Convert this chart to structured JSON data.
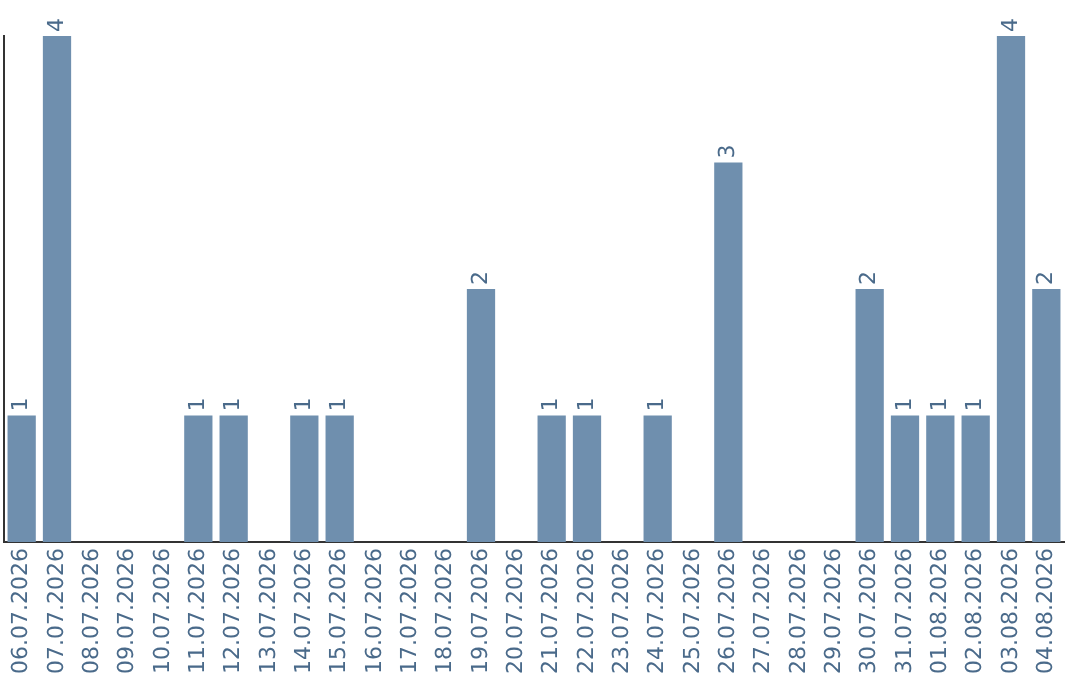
{
  "chart_data": {
    "type": "bar",
    "categories": [
      "06.07.2026",
      "07.07.2026",
      "08.07.2026",
      "09.07.2026",
      "10.07.2026",
      "11.07.2026",
      "12.07.2026",
      "13.07.2026",
      "14.07.2026",
      "15.07.2026",
      "16.07.2026",
      "17.07.2026",
      "18.07.2026",
      "19.07.2026",
      "20.07.2026",
      "21.07.2026",
      "22.07.2026",
      "23.07.2026",
      "24.07.2026",
      "25.07.2026",
      "26.07.2026",
      "27.07.2026",
      "28.07.2026",
      "29.07.2026",
      "30.07.2026",
      "31.07.2026",
      "01.08.2026",
      "02.08.2026",
      "03.08.2026",
      "04.08.2026"
    ],
    "values": [
      1,
      4,
      0,
      0,
      0,
      1,
      1,
      0,
      1,
      1,
      0,
      0,
      0,
      2,
      0,
      1,
      1,
      0,
      1,
      0,
      3,
      0,
      0,
      0,
      2,
      1,
      1,
      1,
      4,
      2
    ],
    "value_labels": [
      "1",
      "4",
      null,
      null,
      null,
      "1",
      "1",
      null,
      "1",
      "1",
      null,
      null,
      null,
      "2",
      null,
      "1",
      "1",
      null,
      "1",
      null,
      "3",
      null,
      null,
      null,
      "2",
      "1",
      "1",
      "1",
      "4",
      "2"
    ],
    "color": "#6f8fae",
    "grid": false,
    "legend": false,
    "tick_labels": "x"
  }
}
